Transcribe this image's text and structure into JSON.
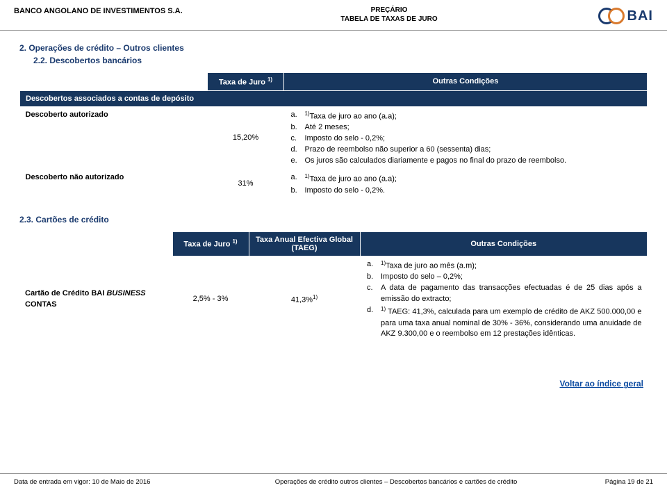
{
  "header": {
    "bank_name": "BANCO ANGOLANO DE INVESTIMENTOS S.A.",
    "doc_title1": "PREÇÁRIO",
    "doc_title2": "TABELA DE TAXAS DE JURO",
    "logo_text": "BAI"
  },
  "section2": {
    "title": "2. Operações de crédito – Outros clientes",
    "sub22": "2.2. Descobertos bancários",
    "table22": {
      "col_rate": "Taxa de Juro ",
      "col_rate_sup": "1)",
      "col_cond": "Outras Condições",
      "header_row": "Descobertos associados a contas de depósito",
      "rows": [
        {
          "label": "Descoberto autorizado",
          "rate": "15,20%",
          "conds": [
            {
              "l": "a.",
              "t": "Taxa de juro ao ano (a.a);",
              "pre": "1)"
            },
            {
              "l": "b.",
              "t": "Até 2 meses;"
            },
            {
              "l": "c.",
              "t": "Imposto do selo - 0,2%;"
            },
            {
              "l": "d.",
              "t": "Prazo de reembolso não superior a 60 (sessenta) dias;"
            },
            {
              "l": "e.",
              "t": "Os juros são calculados diariamente e pagos no final do prazo de reembolso."
            }
          ]
        },
        {
          "label": "Descoberto não autorizado",
          "rate": "31%",
          "conds": [
            {
              "l": "a.",
              "t": "Taxa de juro ao ano (a.a);",
              "pre": "1)"
            },
            {
              "l": "b.",
              "t": "Imposto do selo - 0,2%."
            }
          ]
        }
      ]
    },
    "sub23": "2.3. Cartões de crédito",
    "table23": {
      "col_rate": "Taxa de Juro ",
      "col_rate_sup": "1)",
      "col_taeg": "Taxa Anual Efectiva Global (TAEG)",
      "col_cond": "Outras Condições",
      "row": {
        "label_line1": "Cartão de Crédito BAI ",
        "label_line2_italic": "BUSINESS",
        "label_line3": "CONTAS",
        "rate": "2,5% - 3%",
        "taeg": "41,3%",
        "taeg_sup": "1)",
        "conds": [
          {
            "l": "a.",
            "t": "Taxa de juro ao mês (a.m);",
            "pre": "1)"
          },
          {
            "l": "b.",
            "t": "Imposto do selo – 0,2%;"
          },
          {
            "l": "c.",
            "t": "A data de pagamento das transacções efectuadas é de 25 dias após a emissão do extracto;"
          },
          {
            "l": "d.",
            "t": " TAEG: 41,3%, calculada para um exemplo de crédito de AKZ 500.000,00 e para uma taxa anual nominal de 30% - 36%, considerando uma anuidade de AKZ 9.300,00 e o reembolso em 12 prestações idênticas.",
            "pre": "1)"
          }
        ]
      }
    }
  },
  "back_link": "Voltar ao índice geral",
  "footer": {
    "left": "Data de entrada em vigor: 10 de Maio de 2016",
    "center": "Operações de crédito outros clientes – Descobertos bancários e cartões de crédito",
    "right": "Página 19 de 21"
  },
  "colors": {
    "header_bg": "#17365d",
    "section_blue": "#1a3a6e",
    "link_blue": "#0b4aa0"
  }
}
